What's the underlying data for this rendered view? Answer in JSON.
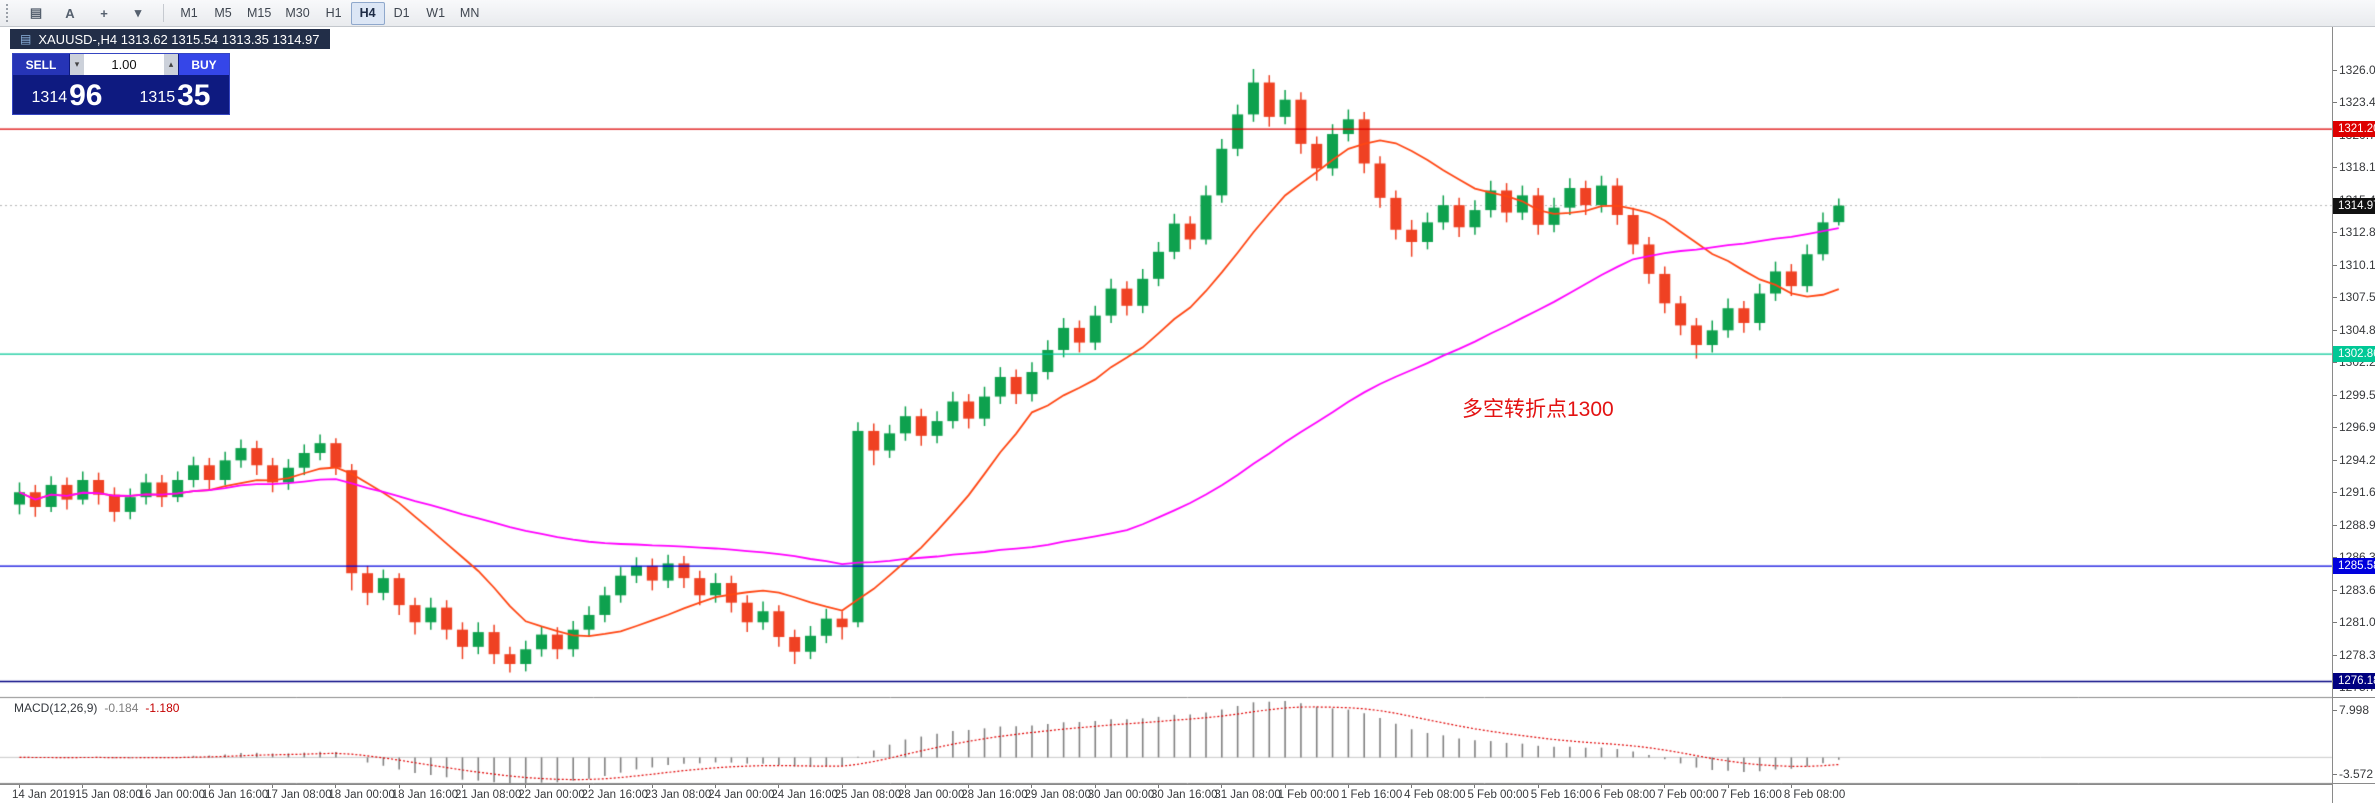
{
  "toolbar": {
    "icons": [
      {
        "name": "chart-window-icon",
        "glyph": "▤"
      },
      {
        "name": "text-tool-icon",
        "glyph": "A"
      },
      {
        "name": "crosshair-tool-icon",
        "glyph": "+"
      },
      {
        "name": "drawing-tools-dropdown-icon",
        "glyph": "▾"
      }
    ],
    "timeframes": [
      "M1",
      "M5",
      "M15",
      "M30",
      "H1",
      "H4",
      "D1",
      "W1",
      "MN"
    ],
    "active_timeframe": "H4"
  },
  "symbol_strip": {
    "icon_glyph": "▤",
    "text": "XAUUSD-,H4  1313.62 1315.54 1313.35 1314.97"
  },
  "trade_panel": {
    "sell_label": "SELL",
    "buy_label": "BUY",
    "volume": "1.00",
    "volume_down_glyph": "▾",
    "volume_up_glyph": "▴",
    "sell_price_main": "1314",
    "sell_price_pips": "96",
    "buy_price_main": "1315",
    "buy_price_pips": "35"
  },
  "annotation": {
    "text": "多空转折点1300",
    "color": "#e31212"
  },
  "macd_panel": {
    "name": "MACD(12,26,9)",
    "value": "-0.184",
    "signal": "-1.180",
    "scale_top": "7.998",
    "scale_bottom": "-3.572"
  },
  "chart_data": {
    "type": "candlestick",
    "symbol": "XAUUSD-",
    "timeframe": "H4",
    "ohlc": {
      "open": 1313.62,
      "high": 1315.54,
      "low": 1313.35,
      "close": 1314.97
    },
    "colors": {
      "up": "#0ea14e",
      "down": "#ef4123",
      "ma_fast": "#ff4613",
      "ma_slow": "#ff00ff",
      "macd_bar": "#808080",
      "macd_signal": "#e00000"
    },
    "current_price": {
      "price": 1314.97,
      "label": "1314.97"
    },
    "hlines": [
      {
        "price": 1321.2,
        "label": "1321.20",
        "color": "#dd0000"
      },
      {
        "price": 1302.86,
        "label": "1302.86",
        "color": "#00c896"
      },
      {
        "price": 1285.58,
        "label": "1285.58",
        "color": "#0000dd"
      },
      {
        "price": 1276.18,
        "label": "1276.18",
        "color": "#000080"
      }
    ],
    "y_ticks": [
      "1326.05",
      "1323.40",
      "1320.75",
      "1318.10",
      "1315.45",
      "1312.80",
      "1310.15",
      "1307.50",
      "1304.85",
      "1302.20",
      "1299.55",
      "1296.90",
      "1294.25",
      "1291.60",
      "1288.95",
      "1286.30",
      "1283.65",
      "1281.00",
      "1278.35",
      "1275.70"
    ],
    "x_labels": [
      "14 Jan 2019",
      "15 Jan 08:00",
      "16 Jan 00:00",
      "16 Jan 16:00",
      "17 Jan 08:00",
      "18 Jan 00:00",
      "18 Jan 16:00",
      "21 Jan 08:00",
      "22 Jan 00:00",
      "22 Jan 16:00",
      "23 Jan 08:00",
      "24 Jan 00:00",
      "24 Jan 16:00",
      "25 Jan 08:00",
      "28 Jan 00:00",
      "28 Jan 16:00",
      "29 Jan 08:00",
      "30 Jan 00:00",
      "30 Jan 16:00",
      "31 Jan 08:00",
      "1 Feb 00:00",
      "1 Feb 16:00",
      "4 Feb 08:00",
      "5 Feb 00:00",
      "5 Feb 16:00",
      "6 Feb 08:00",
      "7 Feb 00:00",
      "7 Feb 16:00",
      "8 Feb 08:00"
    ],
    "candles": [
      [
        1290.6,
        1292.4,
        1289.8,
        1291.6
      ],
      [
        1291.6,
        1292.2,
        1289.6,
        1290.4
      ],
      [
        1290.4,
        1292.9,
        1290.0,
        1292.2
      ],
      [
        1292.2,
        1292.8,
        1290.2,
        1291.0
      ],
      [
        1291.0,
        1293.3,
        1290.6,
        1292.6
      ],
      [
        1292.6,
        1293.2,
        1290.6,
        1291.4
      ],
      [
        1291.4,
        1292.0,
        1289.2,
        1290.0
      ],
      [
        1290.0,
        1291.9,
        1289.4,
        1291.2
      ],
      [
        1291.2,
        1293.1,
        1290.6,
        1292.4
      ],
      [
        1292.4,
        1293.0,
        1290.4,
        1291.2
      ],
      [
        1291.2,
        1293.3,
        1290.8,
        1292.6
      ],
      [
        1292.6,
        1294.5,
        1292.0,
        1293.8
      ],
      [
        1293.8,
        1294.4,
        1291.8,
        1292.6
      ],
      [
        1292.6,
        1294.9,
        1292.2,
        1294.2
      ],
      [
        1294.2,
        1295.9,
        1293.6,
        1295.2
      ],
      [
        1295.2,
        1295.8,
        1293.0,
        1293.8
      ],
      [
        1293.8,
        1294.4,
        1291.6,
        1292.4
      ],
      [
        1292.4,
        1294.3,
        1291.8,
        1293.6
      ],
      [
        1293.6,
        1295.5,
        1293.0,
        1294.8
      ],
      [
        1294.8,
        1296.3,
        1294.2,
        1295.6
      ],
      [
        1295.6,
        1296.0,
        1293.0,
        1293.6
      ],
      [
        1293.4,
        1293.9,
        1283.6,
        1285.0
      ],
      [
        1285.0,
        1285.6,
        1282.4,
        1283.4
      ],
      [
        1283.4,
        1285.3,
        1282.8,
        1284.6
      ],
      [
        1284.6,
        1285.0,
        1281.6,
        1282.4
      ],
      [
        1282.4,
        1283.0,
        1280.0,
        1281.0
      ],
      [
        1281.0,
        1283.0,
        1280.4,
        1282.2
      ],
      [
        1282.2,
        1282.8,
        1279.6,
        1280.4
      ],
      [
        1280.4,
        1281.0,
        1278.0,
        1279.0
      ],
      [
        1279.0,
        1281.0,
        1278.4,
        1280.2
      ],
      [
        1280.2,
        1280.8,
        1277.6,
        1278.4
      ],
      [
        1278.4,
        1279.0,
        1276.9,
        1277.6
      ],
      [
        1277.6,
        1279.5,
        1277.0,
        1278.8
      ],
      [
        1278.8,
        1280.7,
        1278.2,
        1280.0
      ],
      [
        1280.0,
        1280.6,
        1278.0,
        1278.8
      ],
      [
        1278.8,
        1281.1,
        1278.2,
        1280.4
      ],
      [
        1280.4,
        1282.3,
        1279.8,
        1281.6
      ],
      [
        1281.6,
        1283.9,
        1281.0,
        1283.2
      ],
      [
        1283.2,
        1285.5,
        1282.6,
        1284.8
      ],
      [
        1284.8,
        1286.3,
        1284.2,
        1285.6
      ],
      [
        1285.6,
        1286.2,
        1283.6,
        1284.4
      ],
      [
        1284.4,
        1286.5,
        1283.8,
        1285.8
      ],
      [
        1285.8,
        1286.4,
        1283.8,
        1284.6
      ],
      [
        1284.6,
        1285.2,
        1282.4,
        1283.2
      ],
      [
        1283.2,
        1285.0,
        1282.6,
        1284.2
      ],
      [
        1284.2,
        1284.8,
        1281.8,
        1282.6
      ],
      [
        1282.6,
        1283.2,
        1280.2,
        1281.0
      ],
      [
        1281.0,
        1282.7,
        1280.4,
        1281.9
      ],
      [
        1281.9,
        1282.4,
        1279.0,
        1279.8
      ],
      [
        1279.8,
        1280.4,
        1277.6,
        1278.6
      ],
      [
        1278.6,
        1280.7,
        1278.0,
        1279.9
      ],
      [
        1279.9,
        1282.1,
        1279.3,
        1281.3
      ],
      [
        1281.3,
        1281.9,
        1279.6,
        1280.6
      ],
      [
        1281.0,
        1297.3,
        1280.6,
        1296.6
      ],
      [
        1296.6,
        1297.2,
        1293.8,
        1295.0
      ],
      [
        1295.0,
        1297.1,
        1294.4,
        1296.4
      ],
      [
        1296.4,
        1298.6,
        1295.8,
        1297.8
      ],
      [
        1297.8,
        1298.4,
        1295.4,
        1296.2
      ],
      [
        1296.2,
        1298.2,
        1295.6,
        1297.4
      ],
      [
        1297.4,
        1299.8,
        1296.8,
        1299.0
      ],
      [
        1299.0,
        1299.6,
        1296.8,
        1297.6
      ],
      [
        1297.6,
        1300.2,
        1297.0,
        1299.4
      ],
      [
        1299.4,
        1301.8,
        1298.8,
        1301.0
      ],
      [
        1301.0,
        1301.6,
        1298.8,
        1299.6
      ],
      [
        1299.6,
        1302.2,
        1299.0,
        1301.4
      ],
      [
        1301.4,
        1304.0,
        1300.8,
        1303.2
      ],
      [
        1303.2,
        1305.8,
        1302.6,
        1305.0
      ],
      [
        1305.0,
        1305.6,
        1303.0,
        1303.8
      ],
      [
        1303.8,
        1306.8,
        1303.2,
        1306.0
      ],
      [
        1306.0,
        1309.0,
        1305.4,
        1308.2
      ],
      [
        1308.2,
        1308.8,
        1306.0,
        1306.8
      ],
      [
        1306.8,
        1309.8,
        1306.2,
        1309.0
      ],
      [
        1309.0,
        1312.0,
        1308.4,
        1311.2
      ],
      [
        1311.2,
        1314.3,
        1310.6,
        1313.5
      ],
      [
        1313.5,
        1314.1,
        1311.4,
        1312.2
      ],
      [
        1312.2,
        1316.6,
        1311.8,
        1315.8
      ],
      [
        1315.8,
        1320.4,
        1315.2,
        1319.6
      ],
      [
        1319.6,
        1323.2,
        1319.0,
        1322.4
      ],
      [
        1322.4,
        1326.1,
        1321.8,
        1325.0
      ],
      [
        1325.0,
        1325.6,
        1321.4,
        1322.2
      ],
      [
        1322.2,
        1324.4,
        1321.6,
        1323.6
      ],
      [
        1323.6,
        1324.2,
        1319.2,
        1320.0
      ],
      [
        1320.0,
        1320.6,
        1317.0,
        1318.0
      ],
      [
        1318.0,
        1321.6,
        1317.4,
        1320.8
      ],
      [
        1320.8,
        1322.8,
        1320.2,
        1322.0
      ],
      [
        1322.0,
        1322.6,
        1317.6,
        1318.4
      ],
      [
        1318.4,
        1319.0,
        1314.8,
        1315.6
      ],
      [
        1315.6,
        1316.2,
        1312.2,
        1313.0
      ],
      [
        1313.0,
        1313.8,
        1310.8,
        1312.0
      ],
      [
        1312.0,
        1314.4,
        1311.4,
        1313.6
      ],
      [
        1313.6,
        1315.8,
        1313.0,
        1315.0
      ],
      [
        1315.0,
        1315.6,
        1312.4,
        1313.2
      ],
      [
        1313.2,
        1315.4,
        1312.6,
        1314.6
      ],
      [
        1314.6,
        1317.0,
        1314.0,
        1316.2
      ],
      [
        1316.2,
        1316.8,
        1313.6,
        1314.4
      ],
      [
        1314.4,
        1316.6,
        1313.8,
        1315.8
      ],
      [
        1315.8,
        1316.4,
        1312.6,
        1313.4
      ],
      [
        1313.4,
        1315.6,
        1312.8,
        1314.8
      ],
      [
        1314.8,
        1317.2,
        1314.2,
        1316.4
      ],
      [
        1316.4,
        1317.0,
        1314.2,
        1315.0
      ],
      [
        1315.0,
        1317.4,
        1314.4,
        1316.6
      ],
      [
        1316.6,
        1317.2,
        1313.4,
        1314.2
      ],
      [
        1314.2,
        1314.8,
        1311.0,
        1311.8
      ],
      [
        1311.8,
        1312.4,
        1308.6,
        1309.4
      ],
      [
        1309.4,
        1310.0,
        1306.2,
        1307.0
      ],
      [
        1307.0,
        1307.6,
        1304.4,
        1305.2
      ],
      [
        1305.2,
        1305.8,
        1302.5,
        1303.6
      ],
      [
        1303.6,
        1305.6,
        1303.0,
        1304.8
      ],
      [
        1304.8,
        1307.4,
        1304.2,
        1306.6
      ],
      [
        1306.6,
        1307.2,
        1304.6,
        1305.4
      ],
      [
        1305.4,
        1308.6,
        1304.8,
        1307.8
      ],
      [
        1307.8,
        1310.4,
        1307.2,
        1309.6
      ],
      [
        1309.6,
        1310.2,
        1307.6,
        1308.4
      ],
      [
        1308.4,
        1311.8,
        1307.9,
        1311.0
      ],
      [
        1311.0,
        1314.4,
        1310.5,
        1313.6
      ],
      [
        1313.62,
        1315.54,
        1313.35,
        1314.97
      ]
    ]
  }
}
